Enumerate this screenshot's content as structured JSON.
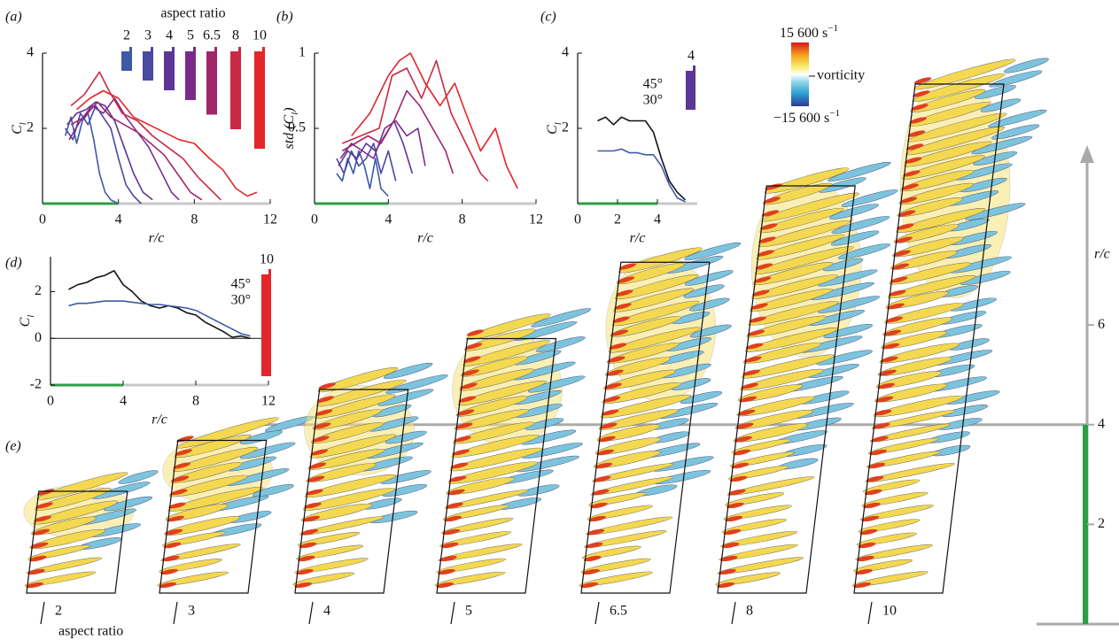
{
  "chart_data": [
    {
      "type": "line",
      "panel": "(a)",
      "xlabel": "r/c",
      "ylabel": {
        "main": "C",
        "sub": "l"
      },
      "xlim": [
        0,
        12
      ],
      "xticks": [
        0,
        4,
        8,
        12
      ],
      "ylim": [
        0,
        4
      ],
      "yticks": [
        2,
        4
      ],
      "span": {
        "range": [
          0,
          4
        ],
        "color": "#2e9e44"
      },
      "legend_title": "aspect ratio",
      "series": [
        {
          "name": "2",
          "color": "#3c5aa8",
          "x": [
            1.2,
            1.5,
            1.8,
            2.1,
            2.4,
            2.7,
            3.0,
            3.3,
            3.6,
            4.0
          ],
          "values": [
            1.8,
            2.3,
            1.6,
            2.2,
            2.4,
            1.7,
            0.8,
            0.3,
            0.1,
            0
          ]
        },
        {
          "name": "3",
          "color": "#4a4aa0",
          "x": [
            1.2,
            1.6,
            2.0,
            2.4,
            2.8,
            3.2,
            3.6,
            4.0,
            4.4,
            4.8,
            5.2
          ],
          "values": [
            2.0,
            1.7,
            2.4,
            2.1,
            2.6,
            2.3,
            2.0,
            1.2,
            0.5,
            0.2,
            0
          ]
        },
        {
          "name": "4",
          "color": "#5c3596",
          "x": [
            1.3,
            1.8,
            2.3,
            2.8,
            3.3,
            3.8,
            4.3,
            4.8,
            5.3,
            5.8
          ],
          "values": [
            2.1,
            2.4,
            2.5,
            2.7,
            2.6,
            2.2,
            1.5,
            0.8,
            0.3,
            0.1
          ]
        },
        {
          "name": "5",
          "color": "#7b2a8c",
          "x": [
            1.4,
            2.0,
            2.6,
            3.2,
            3.8,
            4.4,
            5.0,
            5.6,
            6.2,
            6.8,
            7.2
          ],
          "values": [
            1.7,
            2.2,
            2.6,
            2.4,
            2.8,
            2.3,
            1.9,
            1.5,
            0.9,
            0.3,
            0.1
          ]
        },
        {
          "name": "6.5",
          "color": "#a0266c",
          "x": [
            1.5,
            2.2,
            2.9,
            3.6,
            4.3,
            5.0,
            5.7,
            6.4,
            7.1,
            7.8,
            8.4
          ],
          "values": [
            2.1,
            2.3,
            2.7,
            2.3,
            2.1,
            1.9,
            1.6,
            1.3,
            0.8,
            0.3,
            0.1
          ]
        },
        {
          "name": "8",
          "color": "#c92944",
          "x": [
            1.5,
            2.2,
            3.0,
            3.5,
            4.2,
            5.0,
            5.8,
            6.6,
            7.4,
            8.2,
            9.0,
            9.4
          ],
          "values": [
            2.6,
            2.9,
            3.5,
            3.0,
            2.4,
            2.2,
            1.8,
            1.5,
            1.2,
            0.7,
            0.3,
            0.1
          ]
        },
        {
          "name": "10",
          "color": "#e3262a",
          "x": [
            1.8,
            2.5,
            3.2,
            4.0,
            4.8,
            5.6,
            6.4,
            7.2,
            8.0,
            8.8,
            9.5,
            10.2,
            10.8,
            11.3
          ],
          "values": [
            2.5,
            2.8,
            3.0,
            2.8,
            2.3,
            2.1,
            1.9,
            1.7,
            1.6,
            1.2,
            0.9,
            0.4,
            0.2,
            0.3
          ]
        }
      ]
    },
    {
      "type": "line",
      "panel": "(b)",
      "xlabel": "r/c",
      "ylabel": {
        "main": "std (C",
        "sub": "l",
        "end": ")"
      },
      "xlim": [
        0,
        12
      ],
      "xticks": [
        0,
        4,
        8,
        12
      ],
      "ylim": [
        0,
        1
      ],
      "yticks": [
        0.5,
        1
      ],
      "span": {
        "range": [
          0,
          4
        ],
        "color": "#2e9e44"
      },
      "series": [
        {
          "name": "2",
          "color": "#3c5aa8",
          "x": [
            1.2,
            1.5,
            1.8,
            2.1,
            2.4,
            2.7,
            3.0,
            3.3,
            3.6,
            4.0
          ],
          "values": [
            0.2,
            0.15,
            0.3,
            0.2,
            0.35,
            0.25,
            0.1,
            0.3,
            0.1,
            0.05
          ]
        },
        {
          "name": "3",
          "color": "#4a4aa0",
          "x": [
            1.2,
            1.6,
            2.0,
            2.4,
            2.8,
            3.2,
            3.6,
            4.0,
            4.4
          ],
          "values": [
            0.3,
            0.2,
            0.35,
            0.25,
            0.3,
            0.4,
            0.2,
            0.35,
            0.15
          ]
        },
        {
          "name": "4",
          "color": "#5c3596",
          "x": [
            1.3,
            1.8,
            2.3,
            2.8,
            3.3,
            3.8,
            4.3,
            4.8,
            5.3
          ],
          "values": [
            0.25,
            0.35,
            0.3,
            0.4,
            0.35,
            0.45,
            0.55,
            0.4,
            0.2
          ]
        },
        {
          "name": "5",
          "color": "#7b2a8c",
          "x": [
            1.4,
            2.0,
            2.6,
            3.2,
            3.8,
            4.4,
            5.0,
            5.6,
            6.0
          ],
          "values": [
            0.3,
            0.4,
            0.35,
            0.3,
            0.5,
            0.55,
            0.45,
            0.5,
            0.25
          ]
        },
        {
          "name": "6.5",
          "color": "#a0266c",
          "x": [
            1.5,
            2.2,
            2.9,
            3.6,
            4.3,
            5.0,
            5.7,
            6.4,
            7.1,
            7.5
          ],
          "values": [
            0.35,
            0.4,
            0.45,
            0.4,
            0.55,
            0.75,
            0.65,
            0.5,
            0.35,
            0.2
          ]
        },
        {
          "name": "8",
          "color": "#c92944",
          "x": [
            1.5,
            2.5,
            3.5,
            4.2,
            5.0,
            5.8,
            6.6,
            7.4,
            8.2,
            9.0,
            9.4
          ],
          "values": [
            0.4,
            0.45,
            0.5,
            0.85,
            0.9,
            0.7,
            0.95,
            0.6,
            0.4,
            0.2,
            0.15
          ]
        },
        {
          "name": "10",
          "color": "#e3262a",
          "x": [
            2.0,
            3.0,
            4.0,
            4.6,
            5.2,
            6.0,
            6.8,
            7.6,
            8.2,
            9.0,
            9.8,
            10.4,
            11.0
          ],
          "values": [
            0.45,
            0.6,
            0.85,
            0.95,
            1.0,
            0.8,
            0.65,
            0.8,
            0.6,
            0.35,
            0.5,
            0.25,
            0.1
          ]
        }
      ]
    },
    {
      "type": "line",
      "panel": "(c)",
      "xlabel": "r/c",
      "ylabel": {
        "main": "C",
        "sub": "l"
      },
      "xlim": [
        0,
        6
      ],
      "xticks": [
        0,
        2,
        4
      ],
      "ylim": [
        0,
        4
      ],
      "yticks": [
        2,
        4
      ],
      "span": {
        "range": [
          0,
          4
        ],
        "color": "#2e9e44"
      },
      "wing": {
        "label": "4",
        "color": "#5c3596"
      },
      "x": [
        1.0,
        1.4,
        1.8,
        2.2,
        2.6,
        3.0,
        3.4,
        3.8,
        4.2,
        4.6,
        5.0,
        5.4
      ],
      "series": [
        {
          "name": "45°",
          "color": "#111111",
          "values": [
            2.2,
            2.3,
            2.1,
            2.3,
            2.2,
            2.2,
            2.2,
            1.9,
            1.2,
            0.6,
            0.3,
            0.1
          ]
        },
        {
          "name": "30°",
          "color": "#3c5aa8",
          "values": [
            1.4,
            1.4,
            1.4,
            1.45,
            1.35,
            1.35,
            1.3,
            1.3,
            1.0,
            0.5,
            0.15,
            0.05
          ]
        }
      ]
    },
    {
      "type": "line",
      "panel": "(d)",
      "xlabel": "r/c",
      "ylabel": {
        "main": "C",
        "sub": "l"
      },
      "xlim": [
        0,
        12
      ],
      "xticks": [
        0,
        4,
        8,
        12
      ],
      "ylim": [
        -2,
        3.5
      ],
      "yticks": [
        -2,
        0,
        2
      ],
      "zero_line": true,
      "span": {
        "range": [
          0,
          4
        ],
        "color": "#2e9e44"
      },
      "wing": {
        "label": "10",
        "color": "#e3262a"
      },
      "x": [
        1,
        1.5,
        2,
        2.5,
        3,
        3.5,
        4,
        4.5,
        5,
        5.5,
        6,
        6.5,
        7,
        7.5,
        8,
        8.5,
        9,
        9.5,
        10,
        10.5,
        11
      ],
      "series": [
        {
          "name": "45°",
          "color": "#111111",
          "values": [
            2.1,
            2.3,
            2.4,
            2.6,
            2.7,
            2.9,
            2.3,
            2.0,
            1.6,
            1.4,
            1.3,
            1.4,
            1.3,
            1.1,
            1.0,
            0.7,
            0.5,
            0.3,
            0.05,
            0.1,
            0
          ]
        },
        {
          "name": "30°",
          "color": "#3c5aa8",
          "values": [
            1.4,
            1.5,
            1.5,
            1.55,
            1.6,
            1.6,
            1.6,
            1.55,
            1.5,
            1.45,
            1.45,
            1.4,
            1.35,
            1.3,
            1.2,
            1.0,
            0.8,
            0.6,
            0.4,
            0.2,
            0.1
          ]
        }
      ]
    }
  ],
  "panel_e": {
    "panel": "(e)",
    "axis_label": "aspect ratio",
    "aspect_ratios": [
      {
        "label": "2",
        "color": "#3c5aa8"
      },
      {
        "label": "3",
        "color": "#4a4aa0"
      },
      {
        "label": "4",
        "color": "#5c3596"
      },
      {
        "label": "5",
        "color": "#7b2a8c"
      },
      {
        "label": "6.5",
        "color": "#a0266c"
      },
      {
        "label": "8",
        "color": "#c92944"
      },
      {
        "label": "10",
        "color": "#e3262a"
      }
    ],
    "right_axis": {
      "label": "r/c",
      "ylim": [
        0,
        9.5
      ],
      "yticks": [
        2,
        4,
        6
      ],
      "span": {
        "range": [
          0,
          4
        ],
        "color": "#2e9e44"
      }
    },
    "colorbar": {
      "max": {
        "main": "15 600 s",
        "sup": "−1"
      },
      "label": "vorticity",
      "min": {
        "main": "−15 600 s",
        "sup": "−1"
      }
    }
  }
}
